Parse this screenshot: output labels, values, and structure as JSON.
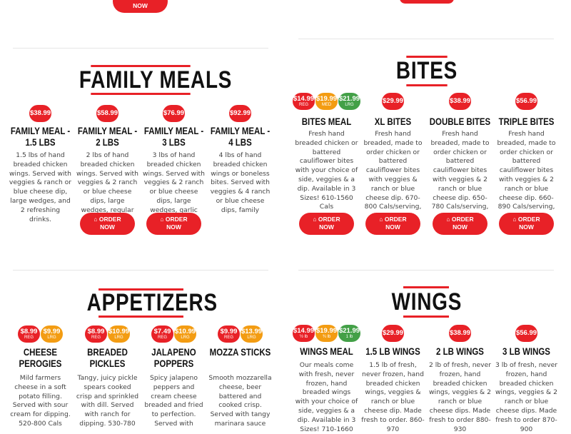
{
  "colors": {
    "red": "#e82127",
    "orange": "#f39c12",
    "green": "#43a047"
  },
  "top_button": {
    "label": "NOW"
  },
  "order_label": "ORDER NOW",
  "order_icon": "shopping-bag-icon",
  "sections": [
    {
      "id": "family-meals",
      "title": "FAMILY MEALS",
      "cards": [
        {
          "title": [
            "FAMILY MEAL -",
            "1.5 LBS"
          ],
          "desc": "1.5 lbs of hand breaded chicken wings. Served with veggies & ranch or blue cheese dip, large wedges, and 2 refreshing drinks.",
          "prices": [
            {
              "price": "$38.99",
              "size": ""
            }
          ],
          "order": false
        },
        {
          "title": [
            "FAMILY MEAL -",
            "2 LBS"
          ],
          "desc": "2 lbs of hand breaded chicken wings. Served with veggies & 2 ranch or blue cheese dips, large wedges, regular",
          "prices": [
            {
              "price": "$58.99",
              "size": ""
            }
          ],
          "order": true
        },
        {
          "title": [
            "FAMILY MEAL -",
            "3 LBS"
          ],
          "desc": "3 lbs of hand breaded chicken wings. Served with veggies & 2 ranch or blue cheese dips, large wedges, garlic",
          "prices": [
            {
              "price": "$76.99",
              "size": ""
            }
          ],
          "order": true
        },
        {
          "title": [
            "FAMILY MEAL -",
            "4 LBS"
          ],
          "desc": "4 lbs of hand breaded chicken wings or boneless bites. Served with veggies & 4 ranch or blue cheese dips, family",
          "prices": [
            {
              "price": "$92.99",
              "size": ""
            }
          ],
          "order": false
        }
      ]
    },
    {
      "id": "bites",
      "title": "BITES",
      "cards": [
        {
          "title": [
            "BITES MEAL"
          ],
          "desc": "Fresh hand breaded chicken or battered cauliflower bites with your choice of side, veggies & a dip. Available in 3 Sizes! 610-1560 Cals",
          "prices": [
            {
              "price": "$14.99",
              "size": "REG"
            },
            {
              "price": "$19.99",
              "size": "MED"
            },
            {
              "price": "$21.99",
              "size": "LRG"
            }
          ],
          "order": true
        },
        {
          "title": [
            "XL BITES"
          ],
          "desc": "Fresh hand breaded, made to order chicken or battered cauliflower bites with veggies & ranch or blue cheese dip. 670-800 Cals/serving,",
          "prices": [
            {
              "price": "$29.99",
              "size": ""
            }
          ],
          "order": true
        },
        {
          "title": [
            "DOUBLE BITES"
          ],
          "desc": "Fresh hand breaded, made to order chicken or battered cauliflower bites with veggies & 2 ranch or blue cheese dip. 650-780 Cals/serving,",
          "prices": [
            {
              "price": "$38.99",
              "size": ""
            }
          ],
          "order": true
        },
        {
          "title": [
            "TRIPLE BITES"
          ],
          "desc": "Fresh hand breaded, made to order chicken or battered cauliflower bites with veggies & 2 ranch or blue cheese dip. 660-890 Cals/serving,",
          "prices": [
            {
              "price": "$56.99",
              "size": ""
            }
          ],
          "order": true
        }
      ]
    },
    {
      "id": "appetizers",
      "title": "APPETIZERS",
      "cards": [
        {
          "title": [
            "CHEESE",
            "PEROGIES"
          ],
          "desc": "Mild farmers cheese in a soft potato filling. Served with sour cream for dipping. 520-800 Cals",
          "prices": [
            {
              "price": "$8.99",
              "size": "REG"
            },
            {
              "price": "$9.99",
              "size": "LRG"
            }
          ],
          "order": false
        },
        {
          "title": [
            "BREADED",
            "PICKLES"
          ],
          "desc": "Tangy, juicy pickle spears cooked crisp and sprinkled with dill. Served with ranch for dipping. 530-780",
          "prices": [
            {
              "price": "$8.99",
              "size": "REG"
            },
            {
              "price": "$10.99",
              "size": "LRG"
            }
          ],
          "order": false
        },
        {
          "title": [
            "JALAPENO",
            "POPPERS"
          ],
          "desc": "Spicy jalapeno peppers and cream cheese breaded and fried to perfection. Served with",
          "prices": [
            {
              "price": "$7.49",
              "size": "REG"
            },
            {
              "price": "$10.99",
              "size": "LRG"
            }
          ],
          "order": false
        },
        {
          "title": [
            "MOZZA STICKS"
          ],
          "desc": "Smooth mozzarella cheese, beer battered and cooked crisp. Served with tangy marinara sauce",
          "prices": [
            {
              "price": "$9.99",
              "size": "REG"
            },
            {
              "price": "$13.99",
              "size": "LRG"
            }
          ],
          "order": false
        }
      ]
    },
    {
      "id": "wings",
      "title": "WINGS",
      "cards": [
        {
          "title": [
            "WINGS MEAL"
          ],
          "desc": "Our meals come with fresh, never frozen, hand breaded wings with your choice of side, veggies & a dip. Available in 3 Sizes! 710-1660",
          "prices": [
            {
              "price": "$14.99",
              "size": "½ lb"
            },
            {
              "price": "$19.99",
              "size": "¾ lb"
            },
            {
              "price": "$21.99",
              "size": "1 lb"
            }
          ],
          "order": false
        },
        {
          "title": [
            "1.5 LB WINGS"
          ],
          "desc": "1.5 lb of fresh, never frozen, hand breaded chicken wings, veggies & ranch or blue cheese dip. Made fresh to order. 860-970",
          "prices": [
            {
              "price": "$29.99",
              "size": ""
            }
          ],
          "order": false
        },
        {
          "title": [
            "2 LB WINGS"
          ],
          "desc": "2 lb of fresh, never frozen, hand breaded chicken wings, veggies & 2 ranch or blue cheese dips. Made fresh to order 880-930",
          "prices": [
            {
              "price": "$38.99",
              "size": ""
            }
          ],
          "order": false
        },
        {
          "title": [
            "3 LB WINGS"
          ],
          "desc": "3 lb of fresh, never frozen, hand breaded chicken wings, veggies & 2 ranch or blue cheese dips. Made fresh to order 870-900",
          "prices": [
            {
              "price": "$56.99",
              "size": ""
            }
          ],
          "order": false
        }
      ]
    }
  ]
}
